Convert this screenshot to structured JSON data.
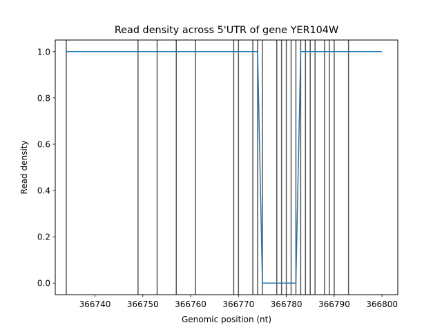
{
  "chart_data": {
    "type": "line",
    "title": "Read density across 5'UTR of gene YER104W",
    "xlabel": "Genomic position (nt)",
    "ylabel": "Read density",
    "xlim": [
      366731.7,
      366803.3
    ],
    "ylim": [
      -0.05,
      1.05
    ],
    "grid": false,
    "x_ticks": [
      366740,
      366750,
      366760,
      366770,
      366780,
      366790,
      366800
    ],
    "x_tick_labels": [
      "366740",
      "366750",
      "366760",
      "366770",
      "366780",
      "366790",
      "366800"
    ],
    "y_ticks": [
      0.0,
      0.2,
      0.4,
      0.6,
      0.8,
      1.0
    ],
    "y_tick_labels": [
      "0.0",
      "0.2",
      "0.4",
      "0.6",
      "0.8",
      "1.0"
    ],
    "series": [
      {
        "color": "#1f77b4",
        "x": [
          366734,
          366774,
          366775,
          366782,
          366783,
          366800
        ],
        "y": [
          1.0,
          1.0,
          0.0,
          0.0,
          1.0,
          1.0
        ]
      }
    ],
    "vertical_lines": {
      "color": "#555555",
      "x": [
        366734,
        366749,
        366753,
        366757,
        366761,
        366769,
        366770,
        366773,
        366774,
        366775,
        366778,
        366779,
        366780,
        366781,
        366782,
        366783,
        366784,
        366785,
        366786,
        366788,
        366789,
        366790,
        366793
      ]
    }
  }
}
